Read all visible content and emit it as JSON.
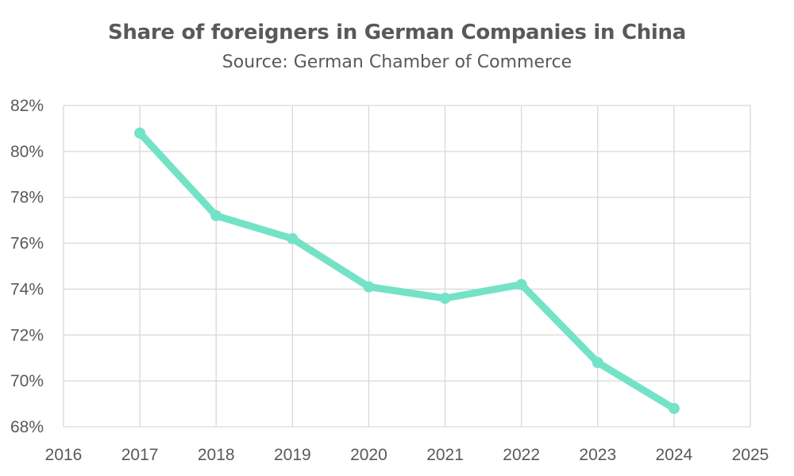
{
  "chart_data": {
    "type": "line",
    "title": "Share of foreigners in German Companies in China",
    "subtitle": "Source: German Chamber of Commerce",
    "xlabel": "",
    "ylabel": "",
    "xlim": [
      2016,
      2025
    ],
    "ylim": [
      68,
      82
    ],
    "x_ticks": [
      "2016",
      "2017",
      "2018",
      "2019",
      "2020",
      "2021",
      "2022",
      "2023",
      "2024",
      "2025"
    ],
    "y_ticks": [
      "68%",
      "70%",
      "72%",
      "74%",
      "76%",
      "78%",
      "80%",
      "82%"
    ],
    "grid": true,
    "legend": "none",
    "series": [
      {
        "color": "#74e2c6",
        "x": [
          2017,
          2018,
          2019,
          2020,
          2021,
          2022,
          2023,
          2024
        ],
        "values": [
          80.8,
          77.2,
          76.2,
          74.1,
          73.6,
          74.2,
          70.8,
          68.8
        ]
      }
    ]
  },
  "colors": {
    "grid": "#d9d9d9",
    "text": "#595959",
    "line": "#74e2c6"
  }
}
